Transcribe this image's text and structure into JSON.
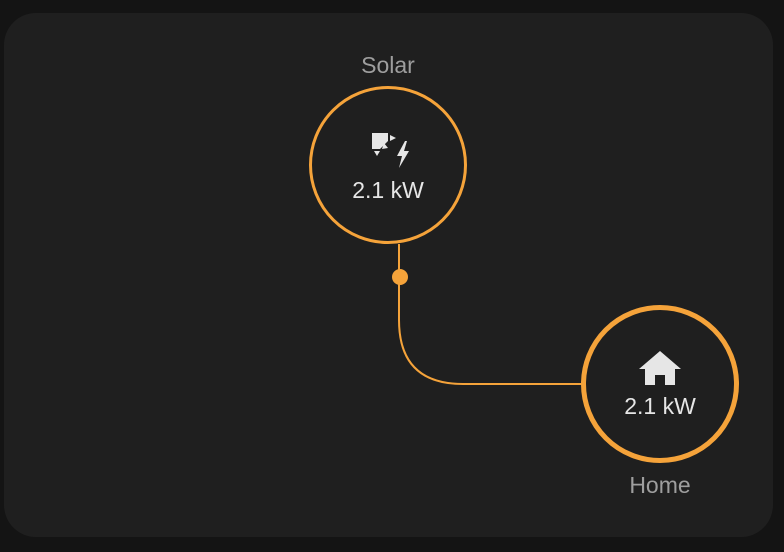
{
  "colors": {
    "flow_accent": "#f5a33a",
    "card_background": "#1f1f1f",
    "page_background": "#141414",
    "label_text": "#9e9e9e",
    "value_text": "#e6e6e6"
  },
  "nodes": {
    "solar": {
      "label": "Solar",
      "value": "2.1 kW",
      "icon": "solar-power-icon"
    },
    "home": {
      "label": "Home",
      "value": "2.1 kW",
      "icon": "home-icon"
    }
  }
}
